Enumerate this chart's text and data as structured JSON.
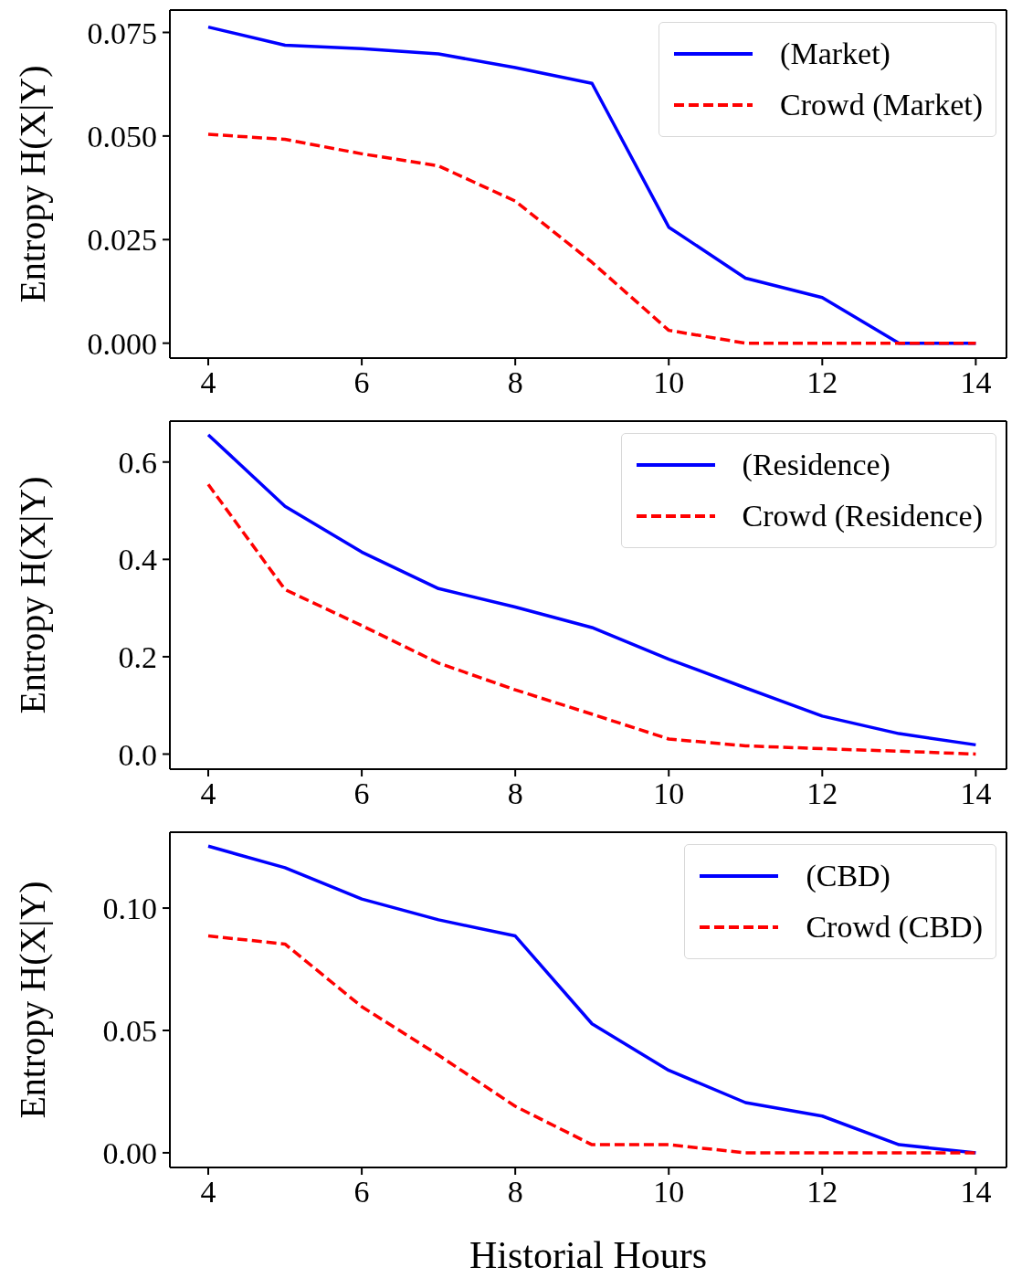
{
  "chart_data": [
    {
      "type": "line",
      "ylabel": "Entropy H(X|Y)",
      "x": [
        4,
        5,
        6,
        7,
        8,
        9,
        10,
        11,
        12,
        13,
        14
      ],
      "xlim": [
        3.5,
        14.4
      ],
      "xticks": [
        4,
        6,
        8,
        10,
        12,
        14
      ],
      "ylim": [
        -0.0036,
        0.0804
      ],
      "yticks": [
        {
          "value": 0,
          "label": "0.000"
        },
        {
          "value": 0.025,
          "label": "0.025"
        },
        {
          "value": 0.05,
          "label": "0.050"
        },
        {
          "value": 0.075,
          "label": "0.075"
        }
      ],
      "legend": "top right",
      "marker": "none",
      "series": [
        {
          "name": "(Market)",
          "color": "#0000ff",
          "line_style": "solid",
          "values": [
            0.0763,
            0.0719,
            0.0711,
            0.0698,
            0.0665,
            0.0627,
            0.028,
            0.0157,
            0.011,
            0,
            0
          ]
        },
        {
          "name": "Crowd (Market)",
          "color": "#ff0000",
          "line_style": "dashed",
          "values": [
            0.0504,
            0.0492,
            0.0457,
            0.0428,
            0.0343,
            0.0195,
            0.0031,
            0,
            0,
            0,
            0
          ]
        }
      ]
    },
    {
      "type": "line",
      "ylabel": "Entropy H(X|Y)",
      "x": [
        4,
        5,
        6,
        7,
        8,
        9,
        10,
        11,
        12,
        13,
        14
      ],
      "xlim": [
        3.5,
        14.4
      ],
      "xticks": [
        4,
        6,
        8,
        10,
        12,
        14
      ],
      "ylim": [
        -0.031,
        0.684
      ],
      "yticks": [
        {
          "value": 0,
          "label": "0.0"
        },
        {
          "value": 0.2,
          "label": "0.2"
        },
        {
          "value": 0.4,
          "label": "0.4"
        },
        {
          "value": 0.6,
          "label": "0.6"
        }
      ],
      "legend": "top right",
      "marker": "none",
      "series": [
        {
          "name": "(Residence)",
          "color": "#0000ff",
          "line_style": "solid",
          "values": [
            0.656,
            0.509,
            0.415,
            0.34,
            0.302,
            0.26,
            0.195,
            0.136,
            0.078,
            0.042,
            0.019
          ]
        },
        {
          "name": "Crowd (Residence)",
          "color": "#ff0000",
          "line_style": "dashed",
          "values": [
            0.554,
            0.338,
            0.264,
            0.187,
            0.132,
            0.082,
            0.031,
            0.017,
            0.011,
            0.006,
            0
          ]
        }
      ]
    },
    {
      "type": "line",
      "ylabel": "Entropy H(X|Y)",
      "xlabel": "Historial Hours",
      "x": [
        4,
        5,
        6,
        7,
        8,
        9,
        10,
        11,
        12,
        13,
        14
      ],
      "xlim": [
        3.5,
        14.4
      ],
      "xticks": [
        4,
        6,
        8,
        10,
        12,
        14
      ],
      "ylim": [
        -0.006,
        0.131
      ],
      "yticks": [
        {
          "value": 0,
          "label": "0.00"
        },
        {
          "value": 0.05,
          "label": "0.05"
        },
        {
          "value": 0.1,
          "label": "0.10"
        }
      ],
      "legend": "top right",
      "marker": "none",
      "series": [
        {
          "name": "(CBD)",
          "color": "#0000ff",
          "line_style": "solid",
          "values": [
            0.1253,
            0.1165,
            0.1037,
            0.0952,
            0.0886,
            0.0527,
            0.0337,
            0.0205,
            0.015,
            0.0033,
            0
          ]
        },
        {
          "name": "Crowd (CBD)",
          "color": "#ff0000",
          "line_style": "dashed",
          "values": [
            0.0886,
            0.0853,
            0.0597,
            0.0399,
            0.019,
            0.0033,
            0.0033,
            0,
            0,
            0,
            0
          ]
        }
      ]
    }
  ]
}
